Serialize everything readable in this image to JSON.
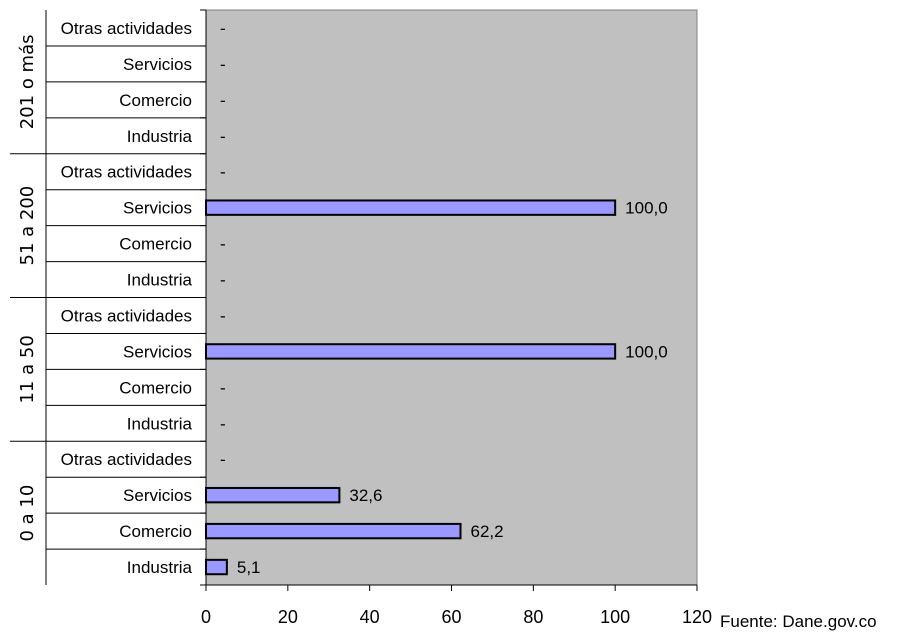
{
  "chart_data": {
    "type": "bar",
    "orientation": "horizontal",
    "groups": [
      {
        "label": "0 a 10",
        "categories": [
          {
            "name": "Industria",
            "value": 5.1,
            "display": "5,1"
          },
          {
            "name": "Comercio",
            "value": 62.2,
            "display": "62,2"
          },
          {
            "name": "Servicios",
            "value": 32.6,
            "display": "32,6"
          },
          {
            "name": "Otras actividades",
            "value": null,
            "display": "-"
          }
        ]
      },
      {
        "label": "11 a 50",
        "categories": [
          {
            "name": "Industria",
            "value": null,
            "display": "-"
          },
          {
            "name": "Comercio",
            "value": null,
            "display": "-"
          },
          {
            "name": "Servicios",
            "value": 100.0,
            "display": "100,0"
          },
          {
            "name": "Otras actividades",
            "value": null,
            "display": "-"
          }
        ]
      },
      {
        "label": "51 a 200",
        "categories": [
          {
            "name": "Industria",
            "value": null,
            "display": "-"
          },
          {
            "name": "Comercio",
            "value": null,
            "display": "-"
          },
          {
            "name": "Servicios",
            "value": 100.0,
            "display": "100,0"
          },
          {
            "name": "Otras actividades",
            "value": null,
            "display": "-"
          }
        ]
      },
      {
        "label": "201 o más",
        "categories": [
          {
            "name": "Industria",
            "value": null,
            "display": "-"
          },
          {
            "name": "Comercio",
            "value": null,
            "display": "-"
          },
          {
            "name": "Servicios",
            "value": null,
            "display": "-"
          },
          {
            "name": "Otras actividades",
            "value": null,
            "display": "-"
          }
        ]
      }
    ],
    "xlim": [
      0,
      120
    ],
    "xticks": [
      0,
      20,
      40,
      60,
      80,
      100,
      120
    ],
    "bar_color": "#9999ff",
    "plot_background": "#c0c0c0",
    "grid": false,
    "source": "Fuente: Dane.gov.co"
  }
}
